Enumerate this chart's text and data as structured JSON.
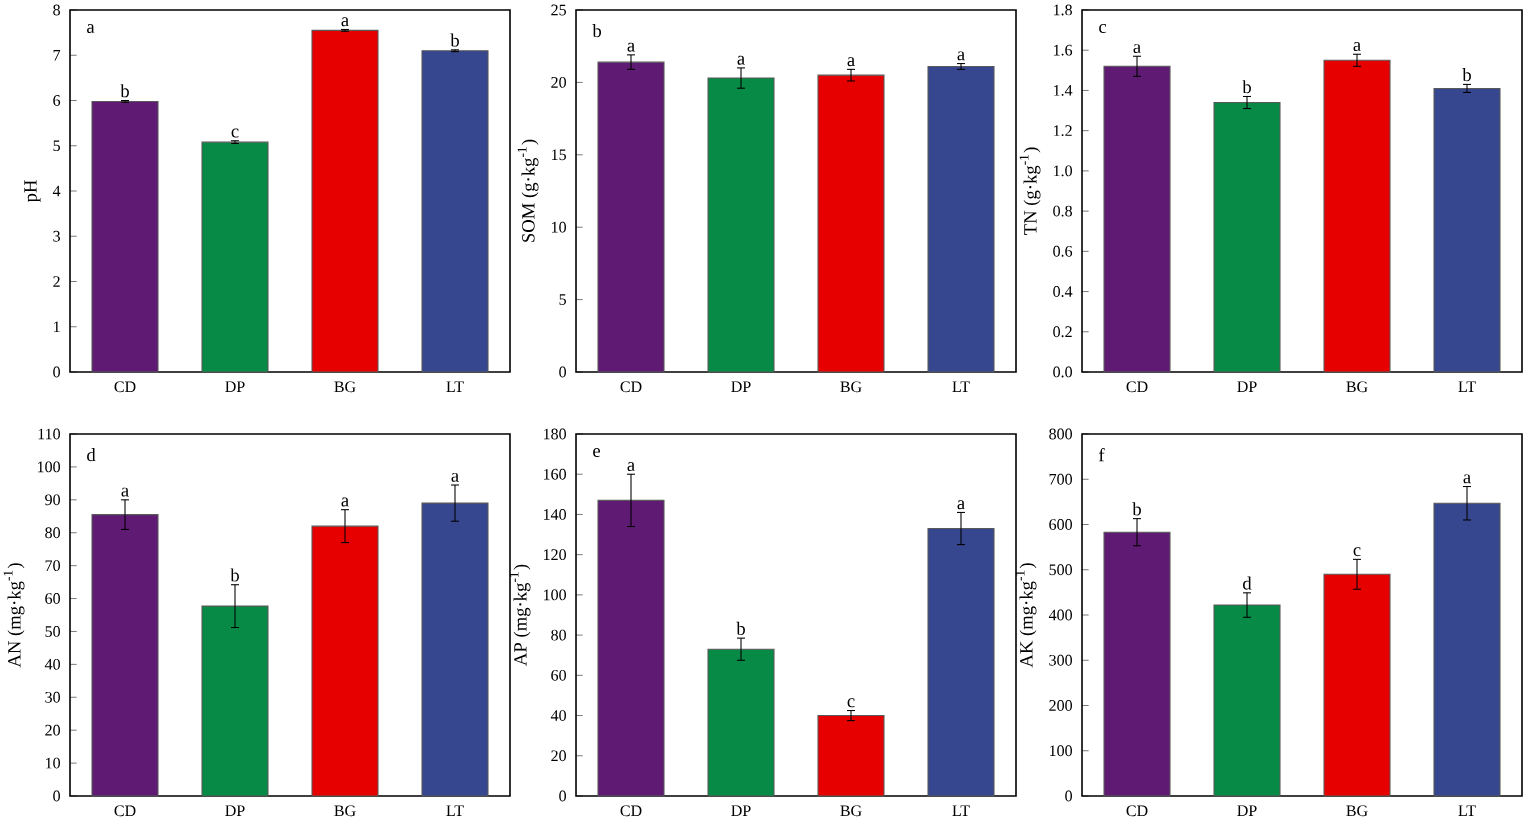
{
  "chart_data": [
    {
      "type": "bar",
      "categories": [
        "CD",
        "DP",
        "BG",
        "LT"
      ],
      "colors": [
        "#5f1a74",
        "#078a45",
        "#e60000",
        "#36478f"
      ],
      "values": [
        5.98,
        5.08,
        7.55,
        7.1
      ],
      "errors": [
        0.02,
        0.03,
        0.02,
        0.02
      ],
      "ylabel": "pH",
      "ylim": [
        0,
        8
      ],
      "yticks": [
        0,
        1,
        2,
        3,
        4,
        5,
        6,
        7,
        8
      ],
      "annotations": [
        "a",
        {
          "text": "b",
          "x": "CD",
          "y": 6.0
        },
        {
          "text": "c",
          "x": "DP",
          "y": 5.11
        },
        {
          "text": "a",
          "x": "BG",
          "y": 7.57
        },
        {
          "text": "b",
          "x": "LT",
          "y": 7.12
        }
      ]
    },
    {
      "type": "bar",
      "categories": [
        "CD",
        "DP",
        "BG",
        "LT"
      ],
      "colors": [
        "#5f1a74",
        "#078a45",
        "#e60000",
        "#36478f"
      ],
      "values": [
        21.4,
        20.3,
        20.5,
        21.1
      ],
      "errors": [
        0.5,
        0.7,
        0.4,
        0.2
      ],
      "ylabel": "SOM (g·kg$^{-1}$)",
      "ylim": [
        0,
        25
      ],
      "yticks": [
        0,
        5,
        10,
        15,
        20,
        25
      ],
      "annotations": [
        "b",
        {
          "text": "a",
          "x": "CD",
          "y": 21.9
        },
        {
          "text": "a",
          "x": "DP",
          "y": 21.0
        },
        {
          "text": "a",
          "x": "BG",
          "y": 20.9
        },
        {
          "text": "a",
          "x": "LT",
          "y": 21.3
        }
      ]
    },
    {
      "type": "bar",
      "categories": [
        "CD",
        "DP",
        "BG",
        "LT"
      ],
      "colors": [
        "#5f1a74",
        "#078a45",
        "#e60000",
        "#36478f"
      ],
      "values": [
        1.52,
        1.34,
        1.55,
        1.41
      ],
      "errors": [
        0.05,
        0.03,
        0.03,
        0.02
      ],
      "ylabel": "TN (g·kg$^{-1}$)",
      "ylim": [
        0,
        1.8
      ],
      "yticks": [
        {
          "value": 0,
          "label": "0.0"
        },
        0.2,
        0.4,
        0.6,
        0.8,
        {
          "value": 1,
          "label": "1.0"
        },
        1.2,
        1.4,
        1.6,
        1.8
      ],
      "annotations": [
        "c",
        {
          "text": "a",
          "x": "CD",
          "y": 1.57
        },
        {
          "text": "b",
          "x": "DP",
          "y": 1.37
        },
        {
          "text": "a",
          "x": "BG",
          "y": 1.58
        },
        {
          "text": "b",
          "x": "LT",
          "y": 1.43
        }
      ]
    },
    {
      "type": "bar",
      "categories": [
        "CD",
        "DP",
        "BG",
        "LT"
      ],
      "colors": [
        "#5f1a74",
        "#078a45",
        "#e60000",
        "#36478f"
      ],
      "values": [
        85.5,
        57.7,
        82,
        89
      ],
      "errors": [
        4.5,
        6.5,
        5,
        5.5
      ],
      "ylabel": "AN (mg·kg$^{-1}$)",
      "ylim": [
        0,
        110
      ],
      "yticks": [
        0,
        10,
        20,
        30,
        40,
        50,
        60,
        70,
        80,
        90,
        100,
        110
      ],
      "annotations": [
        "d",
        {
          "text": "a",
          "x": "CD",
          "y": 90
        },
        {
          "text": "b",
          "x": "DP",
          "y": 64.2
        },
        {
          "text": "a",
          "x": "BG",
          "y": 87
        },
        {
          "text": "a",
          "x": "LT",
          "y": 94.5
        }
      ]
    },
    {
      "type": "bar",
      "categories": [
        "CD",
        "DP",
        "BG",
        "LT"
      ],
      "colors": [
        "#5f1a74",
        "#078a45",
        "#e60000",
        "#36478f"
      ],
      "values": [
        147,
        73,
        40,
        133
      ],
      "errors": [
        13,
        5.5,
        2.5,
        8
      ],
      "ylabel": "AP (mg·kg$^{-1}$)",
      "ylim": [
        0,
        180
      ],
      "yticks": [
        0,
        20,
        40,
        60,
        80,
        100,
        120,
        140,
        160,
        180
      ],
      "annotations": [
        "e",
        {
          "text": "a",
          "x": "CD",
          "y": 160
        },
        {
          "text": "b",
          "x": "DP",
          "y": 78.5
        },
        {
          "text": "c",
          "x": "BG",
          "y": 42.5
        },
        {
          "text": "a",
          "x": "LT",
          "y": 141
        }
      ]
    },
    {
      "type": "bar",
      "categories": [
        "CD",
        "DP",
        "BG",
        "LT"
      ],
      "colors": [
        "#5f1a74",
        "#078a45",
        "#e60000",
        "#36478f"
      ],
      "values": [
        583,
        422,
        490,
        647
      ],
      "errors": [
        30,
        27,
        33,
        37
      ],
      "ylabel": "AK (mg·kg$^{-1}$)",
      "ylim": [
        0,
        800
      ],
      "yticks": [
        0,
        100,
        200,
        300,
        400,
        500,
        600,
        700,
        800
      ],
      "annotations": [
        "f",
        {
          "text": "b",
          "x": "CD",
          "y": 613
        },
        {
          "text": "d",
          "x": "DP",
          "y": 449
        },
        {
          "text": "c",
          "x": "BG",
          "y": 523
        },
        {
          "text": "a",
          "x": "LT",
          "y": 684
        }
      ]
    }
  ]
}
